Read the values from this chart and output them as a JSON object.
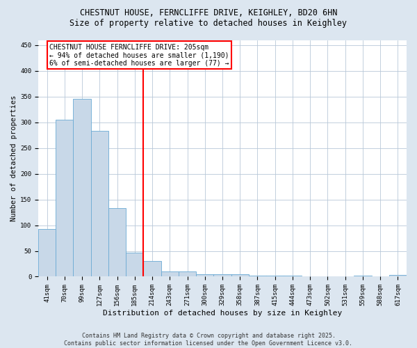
{
  "title1": "CHESTNUT HOUSE, FERNCLIFFE DRIVE, KEIGHLEY, BD20 6HN",
  "title2": "Size of property relative to detached houses in Keighley",
  "xlabel": "Distribution of detached houses by size in Keighley",
  "ylabel": "Number of detached properties",
  "footer1": "Contains HM Land Registry data © Crown copyright and database right 2025.",
  "footer2": "Contains public sector information licensed under the Open Government Licence v3.0.",
  "bin_labels": [
    "41sqm",
    "70sqm",
    "99sqm",
    "127sqm",
    "156sqm",
    "185sqm",
    "214sqm",
    "243sqm",
    "271sqm",
    "300sqm",
    "329sqm",
    "358sqm",
    "387sqm",
    "415sqm",
    "444sqm",
    "473sqm",
    "502sqm",
    "531sqm",
    "559sqm",
    "588sqm",
    "617sqm"
  ],
  "bar_values": [
    93,
    305,
    346,
    283,
    133,
    47,
    30,
    10,
    10,
    5,
    5,
    5,
    2,
    2,
    2,
    0,
    0,
    0,
    2,
    0,
    3
  ],
  "bar_color": "#c8d8e8",
  "bar_edge_color": "#6aaad4",
  "vline_index": 6,
  "vline_color": "red",
  "annotation_text": "CHESTNUT HOUSE FERNCLIFFE DRIVE: 205sqm\n← 94% of detached houses are smaller (1,190)\n6% of semi-detached houses are larger (77) →",
  "annotation_box_color": "white",
  "annotation_box_edge": "red",
  "ylim": [
    0,
    460
  ],
  "yticks": [
    0,
    50,
    100,
    150,
    200,
    250,
    300,
    350,
    400,
    450
  ],
  "background_color": "#dce6f0",
  "plot_background": "white",
  "grid_color": "#b8c8d8",
  "title_fontsize": 8.5,
  "tick_fontsize": 6.5,
  "label_fontsize": 8,
  "annotation_fontsize": 7,
  "footer_fontsize": 6
}
